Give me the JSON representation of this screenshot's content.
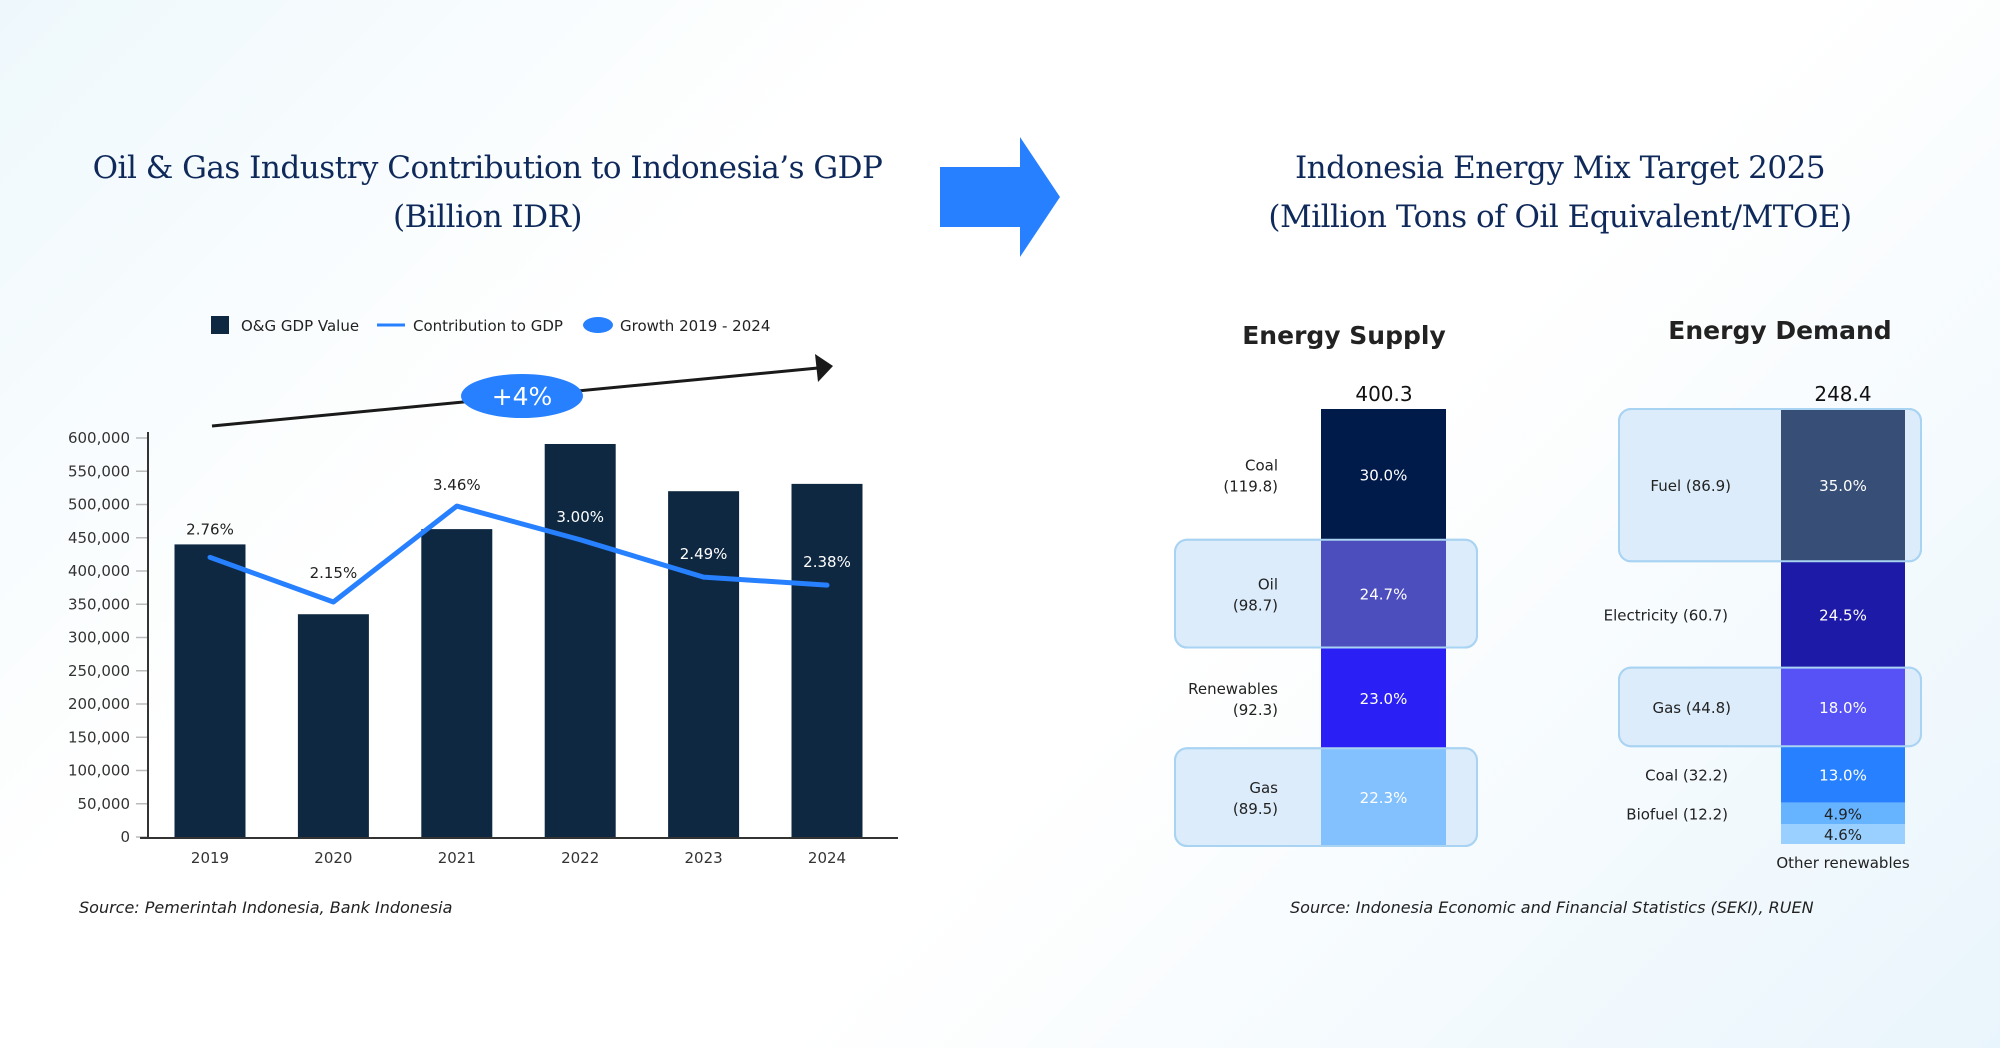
{
  "left": {
    "title_line1": "Oil & Gas Industry Contribution to Indonesia’s GDP",
    "title_line2": "(Billion IDR)",
    "source": "Source: Pemerintah Indonesia, Bank Indonesia",
    "growth_badge": "+4%"
  },
  "right": {
    "title_line1": "Indonesia Energy Mix Target 2025",
    "title_line2": "(Million Tons of Oil Equivalent/MTOE)",
    "source": "Source: Indonesia Economic and Financial Statistics (SEKI), RUEN"
  },
  "colors": {
    "bar": "#0e2841",
    "line": "#2680ff",
    "badge": "#2680ff",
    "arrow": "#2680ff",
    "highlight_fill": "#dcedfa",
    "highlight_stroke": "#a9d3f2"
  },
  "chart_data": [
    {
      "type": "bar",
      "title": "Oil & Gas Industry Contribution to Indonesia's GDP (Billion IDR)",
      "categories": [
        "2019",
        "2020",
        "2021",
        "2022",
        "2023",
        "2024"
      ],
      "series": [
        {
          "name": "O&G GDP Value",
          "type": "bar",
          "values": [
            440000,
            335000,
            463000,
            591000,
            520000,
            531000
          ]
        },
        {
          "name": "Contribution to GDP",
          "type": "line",
          "values": [
            2.76,
            2.15,
            3.46,
            3.0,
            2.49,
            2.38
          ],
          "labels": [
            "2.76%",
            "2.15%",
            "3.46%",
            "3.00%",
            "2.49%",
            "2.38%"
          ]
        }
      ],
      "legend": [
        "O&G GDP Value",
        "Contribution to GDP",
        "Growth 2019 - 2024"
      ],
      "legend_position": "top",
      "annotation": {
        "label": "Growth 2019 - 2024",
        "text": "+4%"
      },
      "yticks": [
        "0",
        "50,000",
        "100,000",
        "150,000",
        "200,000",
        "250,000",
        "300,000",
        "350,000",
        "400,000",
        "450,000",
        "500,000",
        "550,000",
        "600,000"
      ],
      "ylim": [
        0,
        600000
      ],
      "y2lim": [
        -1.06,
        4.39
      ],
      "xlabel": "",
      "ylabel": "",
      "grid": false
    },
    {
      "type": "bar",
      "subtype": "stacked",
      "title": "Energy Supply",
      "total": "400.3",
      "segments": [
        {
          "name": "Coal",
          "value": 119.8,
          "value_label": "(119.8)",
          "percent": "30.0%",
          "color": "#001a4a",
          "highlight": false
        },
        {
          "name": "Oil",
          "value": 98.7,
          "value_label": "(98.7)",
          "percent": "24.7%",
          "color": "#1e1aa8",
          "highlight": true
        },
        {
          "name": "Renewables",
          "value": 92.3,
          "value_label": "(92.3)",
          "percent": "23.0%",
          "color": "#2a1ff5",
          "highlight": false
        },
        {
          "name": "Gas",
          "value": 89.5,
          "value_label": "(89.5)",
          "percent": "22.3%",
          "color": "#66b3ff",
          "highlight": true
        }
      ]
    },
    {
      "type": "bar",
      "subtype": "stacked",
      "title": "Energy Demand",
      "total": "248.4",
      "segments": [
        {
          "name": "Fuel",
          "value": 86.9,
          "label": "Fuel (86.9)",
          "percent": "35.0%",
          "color": "#001a4a",
          "highlight": true
        },
        {
          "name": "Electricity",
          "value": 60.7,
          "label": "Electricity (60.7)",
          "percent": "24.5%",
          "color": "#1e1aa8",
          "highlight": false
        },
        {
          "name": "Gas",
          "value": 44.8,
          "label": "Gas (44.8)",
          "percent": "18.0%",
          "color": "#2a1ff5",
          "highlight": true
        },
        {
          "name": "Coal",
          "value": 32.2,
          "label": "Coal (32.2)",
          "percent": "13.0%",
          "color": "#2680ff",
          "highlight": false
        },
        {
          "name": "Biofuel",
          "value": 12.2,
          "label": "Biofuel (12.2)",
          "percent": "4.9%",
          "color": "#66b3ff",
          "highlight": false
        },
        {
          "name": "Other renewables",
          "value": 11.4,
          "label": "",
          "percent": "4.6%",
          "color": "#99d0ff",
          "highlight": false
        }
      ],
      "footer_label": "Other renewables"
    }
  ]
}
